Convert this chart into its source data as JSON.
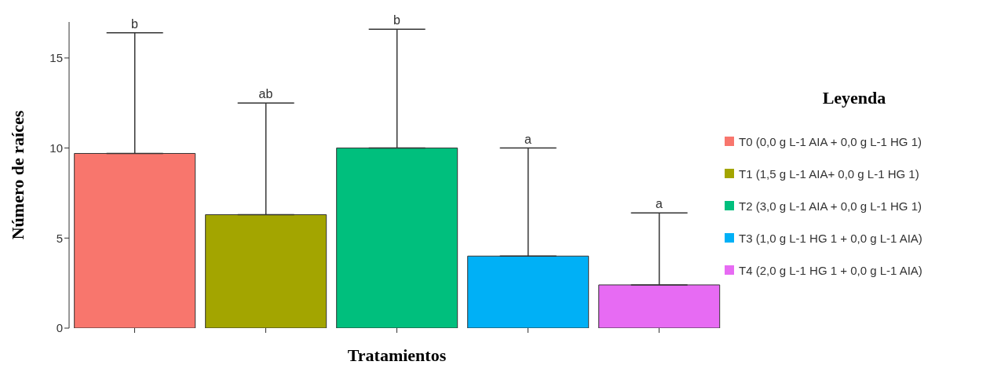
{
  "chart_data": {
    "type": "bar",
    "xlabel": "Tratamientos",
    "ylabel": "Número de raíces",
    "legend_title": "Leyenda",
    "legend": "right",
    "stacked": true,
    "categories": [
      null,
      null,
      null,
      null,
      null
    ],
    "series": [
      {
        "name": "T0 (0,0 g L-1 AIA + 0,0 g L-1 HG 1)",
        "color": "#f8766d",
        "values": [
          9.7,
          null,
          null,
          null,
          null
        ],
        "errors": [
          [
            9.7,
            16.4
          ],
          null,
          null,
          null,
          null
        ]
      },
      {
        "name": "T1 (1,5 g L-1 AIA+ 0,0 g L-1 HG 1)",
        "color": "#a3a500",
        "values": [
          null,
          6.3,
          null,
          null,
          null
        ],
        "errors": [
          null,
          [
            6.3,
            12.5
          ],
          null,
          null,
          null
        ]
      },
      {
        "name": "T2 (3,0 g L-1 AIA + 0,0 g L-1 HG 1)",
        "color": "#00bf7d",
        "values": [
          null,
          null,
          10.0,
          null,
          null
        ],
        "errors": [
          null,
          null,
          [
            10.0,
            16.6
          ],
          null,
          null
        ]
      },
      {
        "name": "T3 (1,0 g L-1 HG 1 + 0,0 g L-1 AIA)",
        "color": "#00b0f6",
        "values": [
          null,
          null,
          null,
          4.0,
          null
        ],
        "errors": [
          null,
          null,
          null,
          [
            4.0,
            10.0
          ],
          null
        ]
      },
      {
        "name": "T4 (2,0 g L-1 HG 1 + 0,0 g L-1 AIA)",
        "color": "#e76bf3",
        "values": [
          null,
          null,
          null,
          null,
          2.4
        ],
        "errors": [
          null,
          null,
          null,
          null,
          [
            2.4,
            6.4
          ]
        ]
      }
    ],
    "annotations": [
      "b",
      "ab",
      "b",
      "a",
      "a"
    ],
    "ylim": [
      0,
      17
    ],
    "yticks": [
      0,
      5,
      10,
      15
    ]
  }
}
